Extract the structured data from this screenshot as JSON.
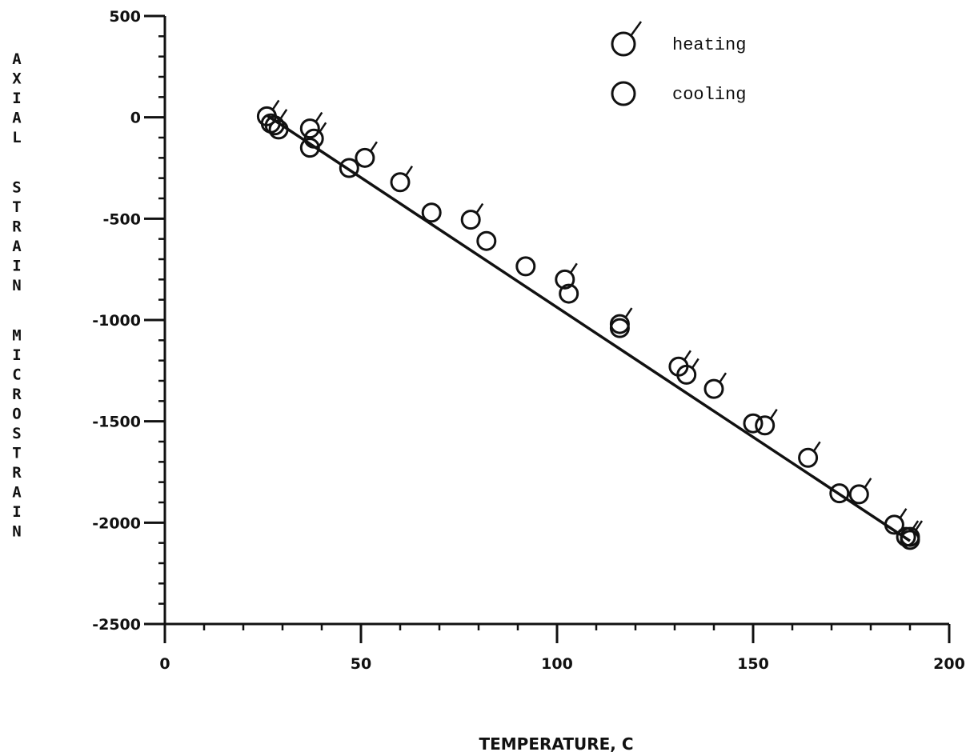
{
  "chart_data": {
    "type": "scatter",
    "xlabel": "TEMPERATURE, C",
    "ylabel_words": [
      "AXIAL",
      "STRAIN",
      "MICROSTRAIN"
    ],
    "xlim": [
      0,
      200
    ],
    "ylim": [
      -2500,
      500
    ],
    "x_ticks": [
      0,
      50,
      100,
      150,
      200
    ],
    "x_tick_labels": [
      "0",
      "50",
      "100",
      "150",
      "200"
    ],
    "y_ticks": [
      500,
      0,
      -500,
      -1000,
      -1500,
      -2000,
      -2500
    ],
    "y_tick_labels": [
      "500",
      "0",
      "-500",
      "-1000",
      "-1500",
      "-2000",
      "-2500"
    ],
    "grid": false,
    "legend_position": "top-right",
    "legend": [
      {
        "label": "heating",
        "marker": "circle-with-flag"
      },
      {
        "label": "cooling",
        "marker": "circle"
      }
    ],
    "fit_line": {
      "x": [
        26,
        190
      ],
      "y": [
        10,
        -2090
      ]
    },
    "series": [
      {
        "name": "heating",
        "x": [
          26,
          28,
          37,
          38,
          51,
          60,
          78,
          102,
          116,
          131,
          133,
          140,
          153,
          164,
          177,
          186,
          189,
          190
        ],
        "y": [
          5,
          -40,
          -55,
          -105,
          -200,
          -320,
          -505,
          -800,
          -1020,
          -1230,
          -1270,
          -1340,
          -1520,
          -1680,
          -1860,
          -2010,
          -2070,
          -2070
        ]
      },
      {
        "name": "cooling",
        "x": [
          27,
          29,
          37,
          47,
          68,
          82,
          92,
          103,
          116,
          150,
          172,
          190
        ],
        "y": [
          -30,
          -60,
          -150,
          -250,
          -470,
          -610,
          -735,
          -870,
          -1040,
          -1510,
          -1855,
          -2085
        ]
      }
    ]
  }
}
